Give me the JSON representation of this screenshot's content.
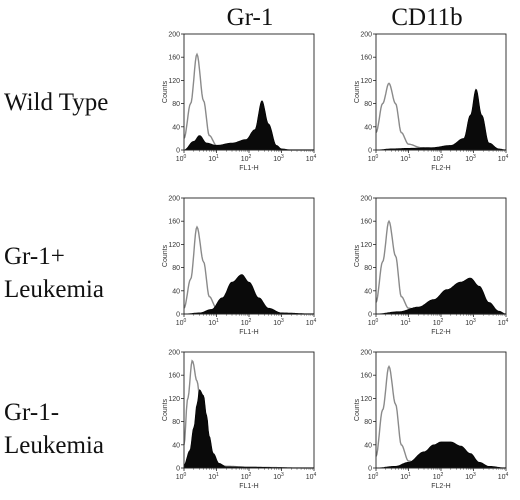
{
  "columns": [
    "Gr-1",
    "CD11b"
  ],
  "rows": [
    {
      "label_lines": [
        "Wild Type"
      ]
    },
    {
      "label_lines": [
        "Gr-1+",
        "Leukemia"
      ]
    },
    {
      "label_lines": [
        "Gr-1-",
        "Leukemia"
      ]
    }
  ],
  "axis": {
    "ylabel": "Counts",
    "yticks": [
      0,
      40,
      80,
      120,
      160,
      200
    ],
    "xtick_mantissa": "10",
    "xtick_exponents": [
      "0",
      "1",
      "2",
      "3",
      "4"
    ]
  },
  "chart_data": [
    {
      "type": "area",
      "row": "Wild Type",
      "column": "Gr-1",
      "xlabel": "FL1-H",
      "x_scale": "log",
      "xlim": [
        1,
        10000
      ],
      "ylim": [
        0,
        200
      ],
      "series": [
        {
          "role": "control",
          "style": "open outline",
          "x": [
            1,
            1.6,
            2.5,
            4,
            6,
            10,
            25,
            100,
            1000,
            10000
          ],
          "y": [
            20,
            80,
            165,
            85,
            25,
            8,
            4,
            2,
            0,
            0
          ]
        },
        {
          "role": "stained",
          "style": "filled black",
          "x": [
            1,
            2,
            3,
            5,
            10,
            30,
            80,
            150,
            250,
            400,
            700,
            1000,
            2000,
            10000
          ],
          "y": [
            0,
            15,
            25,
            12,
            8,
            12,
            18,
            35,
            85,
            45,
            8,
            2,
            0,
            0
          ]
        }
      ]
    },
    {
      "type": "area",
      "row": "Wild Type",
      "column": "CD11b",
      "xlabel": "FL2-H",
      "x_scale": "log",
      "xlim": [
        1,
        10000
      ],
      "ylim": [
        0,
        200
      ],
      "series": [
        {
          "role": "control",
          "style": "open outline",
          "x": [
            1,
            1.6,
            2.5,
            4,
            6,
            10,
            25,
            100,
            1000,
            10000
          ],
          "y": [
            30,
            80,
            115,
            80,
            30,
            10,
            4,
            2,
            0,
            0
          ]
        },
        {
          "role": "stained",
          "style": "filled black",
          "x": [
            1,
            3,
            10,
            50,
            200,
            500,
            800,
            1200,
            1800,
            3000,
            6000,
            10000
          ],
          "y": [
            0,
            2,
            3,
            4,
            8,
            20,
            60,
            105,
            60,
            12,
            2,
            0
          ]
        }
      ]
    },
    {
      "type": "area",
      "row": "Gr-1+ Leukemia",
      "column": "Gr-1",
      "xlabel": "FL1-H",
      "x_scale": "log",
      "xlim": [
        1,
        10000
      ],
      "ylim": [
        0,
        200
      ],
      "series": [
        {
          "role": "control",
          "style": "open outline",
          "x": [
            1,
            1.6,
            2.5,
            4,
            6,
            10,
            25,
            100,
            1000,
            10000
          ],
          "y": [
            10,
            60,
            150,
            90,
            30,
            10,
            4,
            2,
            0,
            0
          ]
        },
        {
          "role": "stained",
          "style": "filled black",
          "x": [
            1,
            3,
            7,
            15,
            30,
            60,
            100,
            200,
            400,
            1000,
            10000
          ],
          "y": [
            0,
            2,
            8,
            28,
            55,
            68,
            55,
            28,
            10,
            2,
            0
          ]
        }
      ]
    },
    {
      "type": "area",
      "row": "Gr-1+ Leukemia",
      "column": "CD11b",
      "xlabel": "FL2-H",
      "x_scale": "log",
      "xlim": [
        1,
        10000
      ],
      "ylim": [
        0,
        200
      ],
      "series": [
        {
          "role": "control",
          "style": "open outline",
          "x": [
            1,
            1.6,
            2.5,
            4,
            6,
            10,
            25,
            100,
            1000,
            10000
          ],
          "y": [
            20,
            90,
            160,
            100,
            30,
            10,
            4,
            2,
            0,
            0
          ]
        },
        {
          "role": "stained",
          "style": "filled black",
          "x": [
            1,
            5,
            20,
            60,
            150,
            400,
            800,
            1500,
            3000,
            6000,
            10000
          ],
          "y": [
            0,
            4,
            12,
            25,
            42,
            55,
            62,
            48,
            20,
            5,
            0
          ]
        }
      ]
    },
    {
      "type": "area",
      "row": "Gr-1- Leukemia",
      "column": "Gr-1",
      "xlabel": "FL1-H",
      "x_scale": "log",
      "xlim": [
        1,
        10000
      ],
      "ylim": [
        0,
        200
      ],
      "series": [
        {
          "role": "control",
          "style": "open outline",
          "x": [
            1,
            1.3,
            1.8,
            2.5,
            3.5,
            5,
            7,
            10,
            20,
            100,
            10000
          ],
          "y": [
            40,
            120,
            185,
            150,
            90,
            40,
            15,
            8,
            3,
            1,
            0
          ]
        },
        {
          "role": "stained",
          "style": "filled black",
          "x": [
            1,
            1.5,
            2,
            2.5,
            3,
            4,
            5,
            6,
            8,
            12,
            20,
            10000
          ],
          "y": [
            5,
            30,
            70,
            110,
            135,
            125,
            90,
            55,
            25,
            8,
            2,
            0
          ]
        }
      ]
    },
    {
      "type": "area",
      "row": "Gr-1- Leukemia",
      "column": "CD11b",
      "xlabel": "FL2-H",
      "x_scale": "log",
      "xlim": [
        1,
        10000
      ],
      "ylim": [
        0,
        200
      ],
      "series": [
        {
          "role": "control",
          "style": "open outline",
          "x": [
            1,
            1.6,
            2.5,
            4,
            6,
            10,
            25,
            100,
            1000,
            10000
          ],
          "y": [
            20,
            100,
            175,
            110,
            40,
            12,
            4,
            2,
            0,
            0
          ]
        },
        {
          "role": "stained",
          "style": "filled black",
          "x": [
            1,
            4,
            10,
            30,
            60,
            100,
            200,
            400,
            800,
            1500,
            3000,
            10000
          ],
          "y": [
            0,
            3,
            10,
            28,
            40,
            45,
            45,
            38,
            25,
            10,
            3,
            0
          ]
        }
      ]
    }
  ]
}
